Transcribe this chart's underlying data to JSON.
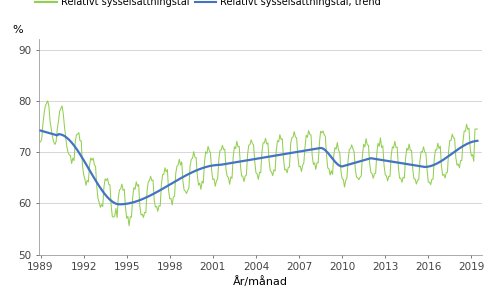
{
  "ylabel": "%",
  "xlabel": "År/månad",
  "legend1": "Relativt sysselsättningstal",
  "legend2": "Relativt sysselsättningstal, trend",
  "ylim": [
    50,
    92
  ],
  "yticks": [
    50,
    60,
    70,
    80,
    90
  ],
  "xticks": [
    1989,
    1992,
    1995,
    1998,
    2001,
    2004,
    2007,
    2010,
    2013,
    2016,
    2019
  ],
  "line_color": "#4472C4",
  "green_color": "#92D050",
  "grid_color": "#c8c8c8"
}
